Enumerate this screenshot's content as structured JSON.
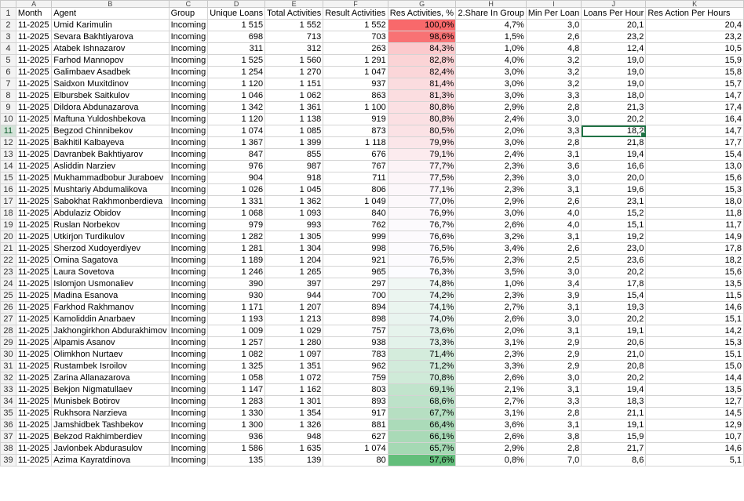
{
  "columns": [
    "A",
    "B",
    "C",
    "D",
    "E",
    "F",
    "G",
    "H",
    "I",
    "J",
    "K"
  ],
  "headers": [
    "Month",
    "Agent",
    "Group",
    "Unique Loans",
    "Total Activities",
    "Result Activities",
    "Res Activities, %",
    "2.Share In Group",
    "Min Per Loan",
    "Loans Per Hour",
    "Res Action Per Hours"
  ],
  "rows": [
    [
      "11-2025",
      "Umid Karimulin",
      "Incoming",
      "1 515",
      "1 552",
      "1 552",
      "100,0%",
      "4,7%",
      "3,0",
      "20,1",
      "20,4"
    ],
    [
      "11-2025",
      "Sevara Bakhtiyarova",
      "Incoming",
      "698",
      "713",
      "703",
      "98,6%",
      "1,5%",
      "2,6",
      "23,2",
      "23,2"
    ],
    [
      "11-2025",
      "Atabek Ishnazarov",
      "Incoming",
      "311",
      "312",
      "263",
      "84,3%",
      "1,0%",
      "4,8",
      "12,4",
      "10,5"
    ],
    [
      "11-2025",
      "Farhod Mannopov",
      "Incoming",
      "1 525",
      "1 560",
      "1 291",
      "82,8%",
      "4,0%",
      "3,2",
      "19,0",
      "15,9"
    ],
    [
      "11-2025",
      "Galimbaev Asadbek",
      "Incoming",
      "1 254",
      "1 270",
      "1 047",
      "82,4%",
      "3,0%",
      "3,2",
      "19,0",
      "15,8"
    ],
    [
      "11-2025",
      "Saidxon Muxitdinov",
      "Incoming",
      "1 120",
      "1 151",
      "937",
      "81,4%",
      "3,0%",
      "3,2",
      "19,0",
      "15,7"
    ],
    [
      "11-2025",
      "Elbursbek Saitkulov",
      "Incoming",
      "1 046",
      "1 062",
      "863",
      "81,3%",
      "3,0%",
      "3,3",
      "18,0",
      "14,7"
    ],
    [
      "11-2025",
      "Dildora Abdunazarova",
      "Incoming",
      "1 342",
      "1 361",
      "1 100",
      "80,8%",
      "2,9%",
      "2,8",
      "21,3",
      "17,4"
    ],
    [
      "11-2025",
      "Maftuna Yuldoshbekova",
      "Incoming",
      "1 120",
      "1 138",
      "919",
      "80,8%",
      "2,4%",
      "3,0",
      "20,2",
      "16,4"
    ],
    [
      "11-2025",
      "Begzod Chinnibekov",
      "Incoming",
      "1 074",
      "1 085",
      "873",
      "80,5%",
      "2,0%",
      "3,3",
      "18,2",
      "14,7"
    ],
    [
      "11-2025",
      "Bakhitil Kalbayeva",
      "Incoming",
      "1 367",
      "1 399",
      "1 118",
      "79,9%",
      "3,0%",
      "2,8",
      "21,8",
      "17,7"
    ],
    [
      "11-2025",
      "Davranbek Bakhtiyarov",
      "Incoming",
      "847",
      "855",
      "676",
      "79,1%",
      "2,4%",
      "3,1",
      "19,4",
      "15,4"
    ],
    [
      "11-2025",
      "Asliddin Narziev",
      "Incoming",
      "976",
      "987",
      "767",
      "77,7%",
      "2,3%",
      "3,6",
      "16,6",
      "13,0"
    ],
    [
      "11-2025",
      "Mukhammadbobur Juraboev",
      "Incoming",
      "904",
      "918",
      "711",
      "77,5%",
      "2,3%",
      "3,0",
      "20,0",
      "15,6"
    ],
    [
      "11-2025",
      "Mushtariy Abdumalikova",
      "Incoming",
      "1 026",
      "1 045",
      "806",
      "77,1%",
      "2,3%",
      "3,1",
      "19,6",
      "15,3"
    ],
    [
      "11-2025",
      "Sabokhat Rakhmonberdieva",
      "Incoming",
      "1 331",
      "1 362",
      "1 049",
      "77,0%",
      "2,9%",
      "2,6",
      "23,1",
      "18,0"
    ],
    [
      "11-2025",
      "Abdulaziz Obidov",
      "Incoming",
      "1 068",
      "1 093",
      "840",
      "76,9%",
      "3,0%",
      "4,0",
      "15,2",
      "11,8"
    ],
    [
      "11-2025",
      "Ruslan Norbekov",
      "Incoming",
      "979",
      "993",
      "762",
      "76,7%",
      "2,6%",
      "4,0",
      "15,1",
      "11,7"
    ],
    [
      "11-2025",
      "Utkirjon Turdikulov",
      "Incoming",
      "1 282",
      "1 305",
      "999",
      "76,6%",
      "3,2%",
      "3,1",
      "19,2",
      "14,9"
    ],
    [
      "11-2025",
      "Sherzod Xudoyerdiyev",
      "Incoming",
      "1 281",
      "1 304",
      "998",
      "76,5%",
      "3,4%",
      "2,6",
      "23,0",
      "17,8"
    ],
    [
      "11-2025",
      "Omina Sagatova",
      "Incoming",
      "1 189",
      "1 204",
      "921",
      "76,5%",
      "2,3%",
      "2,5",
      "23,6",
      "18,2"
    ],
    [
      "11-2025",
      "Laura Sovetova",
      "Incoming",
      "1 246",
      "1 265",
      "965",
      "76,3%",
      "3,5%",
      "3,0",
      "20,2",
      "15,6"
    ],
    [
      "11-2025",
      "Islomjon Usmonaliev",
      "Incoming",
      "390",
      "397",
      "297",
      "74,8%",
      "1,0%",
      "3,4",
      "17,8",
      "13,5"
    ],
    [
      "11-2025",
      "Madina Esanova",
      "Incoming",
      "930",
      "944",
      "700",
      "74,2%",
      "2,3%",
      "3,9",
      "15,4",
      "11,5"
    ],
    [
      "11-2025",
      "Farkhod Rakhmanov",
      "Incoming",
      "1 171",
      "1 207",
      "894",
      "74,1%",
      "2,7%",
      "3,1",
      "19,3",
      "14,6"
    ],
    [
      "11-2025",
      "Kamoliddin Anarbaev",
      "Incoming",
      "1 193",
      "1 213",
      "898",
      "74,0%",
      "2,6%",
      "3,0",
      "20,2",
      "15,1"
    ],
    [
      "11-2025",
      "Jakhongirkhon Abdurakhimov",
      "Incoming",
      "1 009",
      "1 029",
      "757",
      "73,6%",
      "2,0%",
      "3,1",
      "19,1",
      "14,2"
    ],
    [
      "11-2025",
      "Alpamis Asanov",
      "Incoming",
      "1 257",
      "1 280",
      "938",
      "73,3%",
      "3,1%",
      "2,9",
      "20,6",
      "15,3"
    ],
    [
      "11-2025",
      "Olimkhon Nurtaev",
      "Incoming",
      "1 082",
      "1 097",
      "783",
      "71,4%",
      "2,3%",
      "2,9",
      "21,0",
      "15,1"
    ],
    [
      "11-2025",
      "Rustambek Isroilov",
      "Incoming",
      "1 325",
      "1 351",
      "962",
      "71,2%",
      "3,3%",
      "2,9",
      "20,8",
      "15,0"
    ],
    [
      "11-2025",
      "Zarina Allanazarova",
      "Incoming",
      "1 058",
      "1 072",
      "759",
      "70,8%",
      "2,6%",
      "3,0",
      "20,2",
      "14,4"
    ],
    [
      "11-2025",
      "Bekjon Nigmatullaev",
      "Incoming",
      "1 147",
      "1 162",
      "803",
      "69,1%",
      "2,1%",
      "3,1",
      "19,4",
      "13,5"
    ],
    [
      "11-2025",
      "Munisbek Botirov",
      "Incoming",
      "1 283",
      "1 301",
      "893",
      "68,6%",
      "2,7%",
      "3,3",
      "18,3",
      "12,7"
    ],
    [
      "11-2025",
      "Rukhsora Narzieva",
      "Incoming",
      "1 330",
      "1 354",
      "917",
      "67,7%",
      "3,1%",
      "2,8",
      "21,1",
      "14,5"
    ],
    [
      "11-2025",
      "Jamshidbek Tashbekov",
      "Incoming",
      "1 300",
      "1 326",
      "881",
      "66,4%",
      "3,6%",
      "3,1",
      "19,1",
      "12,9"
    ],
    [
      "11-2025",
      "Bekzod Rakhimberdiev",
      "Incoming",
      "936",
      "948",
      "627",
      "66,1%",
      "2,6%",
      "3,8",
      "15,9",
      "10,7"
    ],
    [
      "11-2025",
      "Javlonbek Abdurasulov",
      "Incoming",
      "1 586",
      "1 635",
      "1 074",
      "65,7%",
      "2,9%",
      "2,8",
      "21,7",
      "14,6"
    ],
    [
      "11-2025",
      "Azima Kayratdinova",
      "Incoming",
      "135",
      "139",
      "80",
      "57,6%",
      "0,8%",
      "7,0",
      "8,6",
      "5,1"
    ]
  ],
  "colorscale": {
    "high": "#f8696b",
    "mid": "#fcfcff",
    "low": "#63be7b",
    "min_value": 57.6,
    "mid_value": 76.3,
    "max_value": 100.0
  },
  "selection": {
    "row": 11,
    "col": "K"
  },
  "colors": {
    "selection": "#217346",
    "header_bg": "#f3f3f3",
    "gridline": "#d4d4d4"
  }
}
